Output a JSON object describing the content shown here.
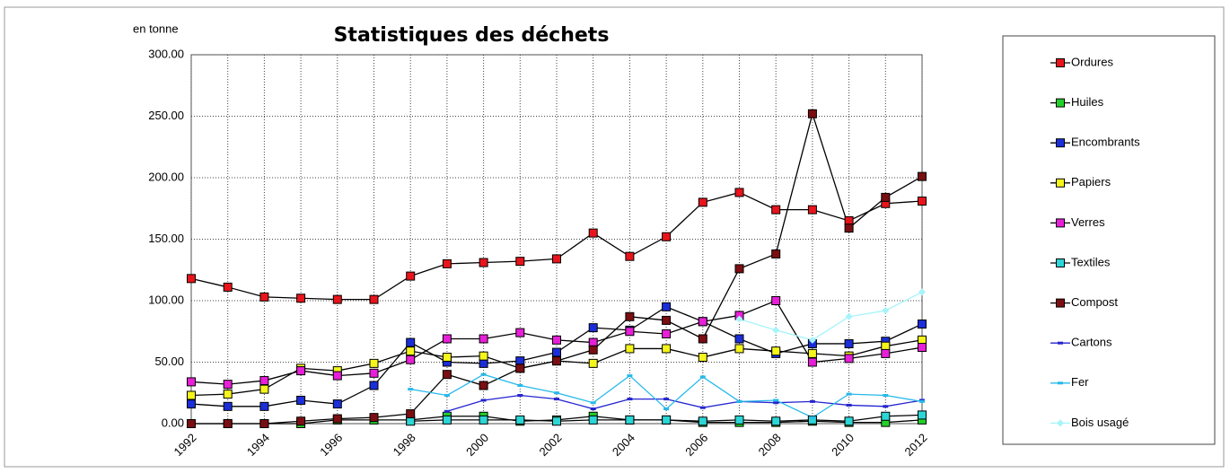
{
  "chart_data": {
    "type": "line",
    "title": "Statistiques des déchets",
    "y_label": "en tonne",
    "categories": [
      "1992",
      null,
      "1994",
      null,
      "1996",
      null,
      "1998",
      null,
      "2000",
      null,
      "2002",
      null,
      "2004",
      null,
      "2006",
      null,
      "2008",
      null,
      "2010",
      null,
      "2012"
    ],
    "ylim": [
      0,
      300
    ],
    "yticks": [
      {
        "value": 0,
        "label": "0.00"
      },
      {
        "value": 50,
        "label": "50.00"
      },
      {
        "value": 100,
        "label": "100.00"
      },
      {
        "value": 150,
        "label": "150.00"
      },
      {
        "value": 200,
        "label": "200.00"
      },
      {
        "value": 250,
        "label": "250.00"
      },
      {
        "value": 300,
        "label": "300.00"
      }
    ],
    "grid": true,
    "legend": "right",
    "series": [
      {
        "name": "Ordures",
        "color": "#e8141b",
        "line_color": "#000000",
        "marker": "square",
        "values": [
          118,
          111,
          103,
          102,
          101,
          101,
          120,
          130,
          131,
          132,
          134,
          155,
          136,
          152,
          180,
          188,
          174,
          174,
          165,
          179,
          181
        ]
      },
      {
        "name": "Huiles",
        "color": "#22d02a",
        "line_color": "#000000",
        "marker": "square",
        "values": [
          0,
          0,
          0,
          0,
          3,
          3,
          3,
          6,
          6,
          2,
          3,
          6,
          3,
          3,
          1,
          1,
          1,
          2,
          1,
          1,
          3
        ]
      },
      {
        "name": "Encombrants",
        "color": "#1b2ed8",
        "line_color": "#000000",
        "marker": "square",
        "values": [
          16,
          14,
          14,
          19,
          16,
          31,
          66,
          50,
          49,
          51,
          58,
          78,
          76,
          95,
          83,
          69,
          57,
          65,
          65,
          67,
          81
        ]
      },
      {
        "name": "Papiers",
        "color": "#f5f51c",
        "line_color": "#000000",
        "marker": "square",
        "values": [
          23,
          24,
          28,
          45,
          43,
          49,
          59,
          54,
          55,
          45,
          51,
          49,
          61,
          61,
          54,
          61,
          59,
          57,
          55,
          63,
          68
        ]
      },
      {
        "name": "Verres",
        "color": "#e81fd8",
        "line_color": "#000000",
        "marker": "square",
        "values": [
          34,
          32,
          35,
          43,
          39,
          41,
          52,
          69,
          69,
          74,
          68,
          66,
          75,
          73,
          83,
          88,
          100,
          50,
          53,
          57,
          62
        ]
      },
      {
        "name": "Textiles",
        "color": "#2cd6d6",
        "line_color": "#000000",
        "marker": "square",
        "values": [
          null,
          null,
          null,
          null,
          null,
          null,
          2,
          3,
          3,
          3,
          2,
          3,
          3,
          3,
          2,
          3,
          2,
          3,
          2,
          6,
          7
        ]
      },
      {
        "name": "Compost",
        "color": "#7a0e12",
        "line_color": "#000000",
        "marker": "square",
        "values": [
          0,
          0,
          0,
          2,
          4,
          5,
          8,
          40,
          31,
          45,
          51,
          60,
          87,
          84,
          69,
          126,
          138,
          252,
          159,
          184,
          201
        ]
      },
      {
        "name": "Cartons",
        "color": "#2424d0",
        "line_color": "#2424d0",
        "marker": "dash",
        "values": [
          null,
          null,
          null,
          null,
          null,
          null,
          null,
          10,
          19,
          23,
          20,
          12,
          20,
          20,
          13,
          18,
          17,
          18,
          15,
          14,
          19
        ]
      },
      {
        "name": "Fer",
        "color": "#27b9ea",
        "line_color": "#27b9ea",
        "marker": "dash",
        "values": [
          null,
          null,
          null,
          null,
          null,
          null,
          28,
          23,
          40,
          31,
          25,
          17,
          39,
          12,
          38,
          18,
          19,
          5,
          24,
          23,
          18
        ]
      },
      {
        "name": "Bois usagé",
        "color": "#a6f3fa",
        "line_color": "#a6f3fa",
        "marker": "diamond",
        "values": [
          null,
          null,
          null,
          null,
          null,
          null,
          null,
          null,
          null,
          null,
          null,
          null,
          null,
          null,
          null,
          85,
          76,
          68,
          87,
          92,
          107
        ]
      }
    ]
  }
}
